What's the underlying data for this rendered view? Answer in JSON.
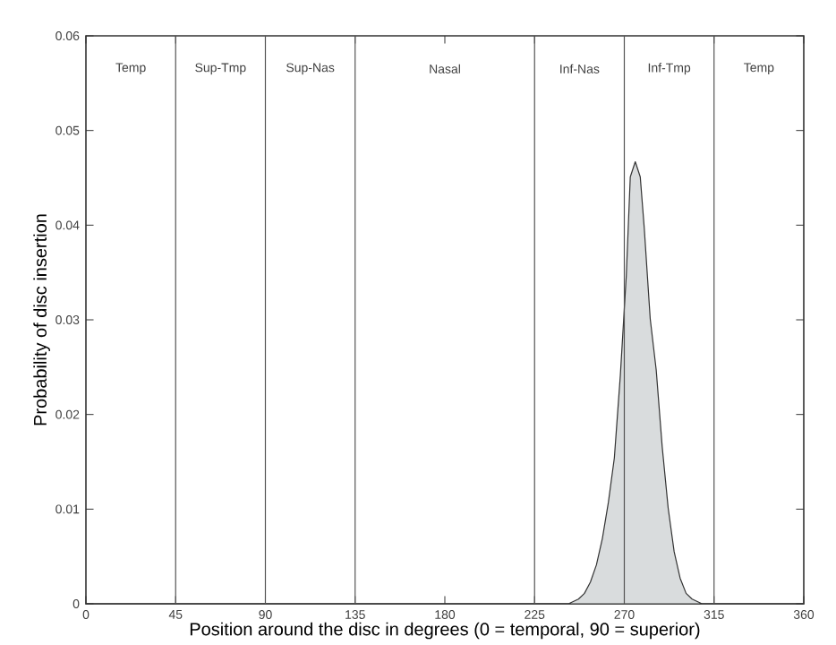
{
  "chart_data": {
    "type": "area",
    "xlabel": "Position around the disc in degrees (0 = temporal, 90 = superior)",
    "ylabel": "Probability of disc insertion",
    "x": [
      0,
      242,
      247,
      250,
      253,
      256,
      259,
      262,
      265,
      268,
      271,
      273,
      275.5,
      278,
      280,
      283,
      286,
      289,
      292,
      295,
      298,
      301,
      304,
      309,
      360
    ],
    "series": [
      {
        "color": "#d9dcdd",
        "values": [
          0,
          0,
          0.0005,
          0.0011,
          0.0023,
          0.0041,
          0.0069,
          0.0107,
          0.0154,
          0.0241,
          0.0347,
          0.0451,
          0.0467,
          0.0451,
          0.0397,
          0.0301,
          0.0247,
          0.0166,
          0.0101,
          0.0055,
          0.0027,
          0.0011,
          0.0005,
          0,
          0
        ]
      }
    ],
    "xlim": [
      0,
      360
    ],
    "xticks": [
      0,
      45,
      90,
      135,
      180,
      225,
      270,
      315,
      360
    ],
    "ylim": [
      0,
      0.06
    ],
    "yticks": [
      0,
      0.01,
      0.02,
      0.03,
      0.04,
      0.05,
      0.06
    ],
    "grid": false,
    "ref_lines": [
      {
        "axis": "x",
        "value": 45,
        "color": "#555555"
      },
      {
        "axis": "x",
        "value": 90,
        "color": "#555555"
      },
      {
        "axis": "x",
        "value": 135,
        "color": "#555555"
      },
      {
        "axis": "x",
        "value": 225,
        "color": "#555555"
      },
      {
        "axis": "x",
        "value": 270,
        "color": "#555555"
      },
      {
        "axis": "x",
        "value": 315,
        "color": "#555555"
      }
    ],
    "annotations": [
      "Temp",
      "Sup-Tmp",
      "Sup-Nas",
      "Nasal",
      "Inf-Nas",
      "Inf-Tmp",
      "Temp"
    ]
  }
}
